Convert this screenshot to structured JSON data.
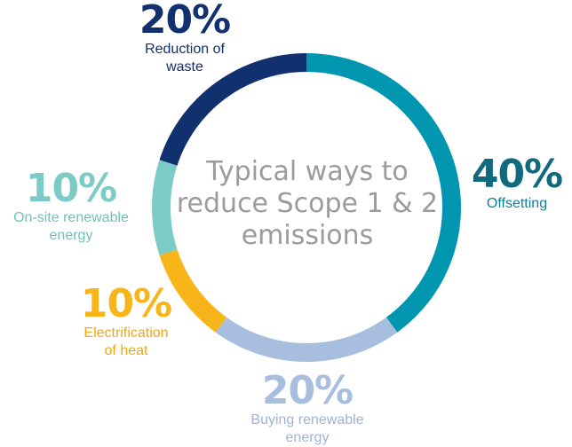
{
  "chart_data": {
    "type": "pie",
    "donut": true,
    "title_lines": [
      "Typical ways to",
      "reduce Scope 1 & 2",
      "emissions"
    ],
    "slices": [
      {
        "pct_label": "40%",
        "value": 40,
        "label_lines": [
          "Offsetting"
        ],
        "color": "#0096b0",
        "pct_color": "#106a7d",
        "desc_color": "#0f7f97"
      },
      {
        "pct_label": "20%",
        "value": 20,
        "label_lines": [
          "Buying  renewable",
          "energy"
        ],
        "color": "#a8bedf",
        "pct_color": "#a8bedf",
        "desc_color": "#9cb3d8"
      },
      {
        "pct_label": "10%",
        "value": 10,
        "label_lines": [
          "Electrification",
          "of heat"
        ],
        "color": "#f7b519",
        "pct_color": "#f7b519",
        "desc_color": "#f0a80f"
      },
      {
        "pct_label": "10%",
        "value": 10,
        "label_lines": [
          "On-site renewable",
          "energy"
        ],
        "color": "#7ccbc6",
        "pct_color": "#7ccbc6",
        "desc_color": "#6fc2bc"
      },
      {
        "pct_label": "20%",
        "value": 20,
        "label_lines": [
          "Reduction of",
          "waste"
        ],
        "color": "#10306e",
        "pct_color": "#10306e",
        "desc_color": "#10306e"
      }
    ]
  }
}
